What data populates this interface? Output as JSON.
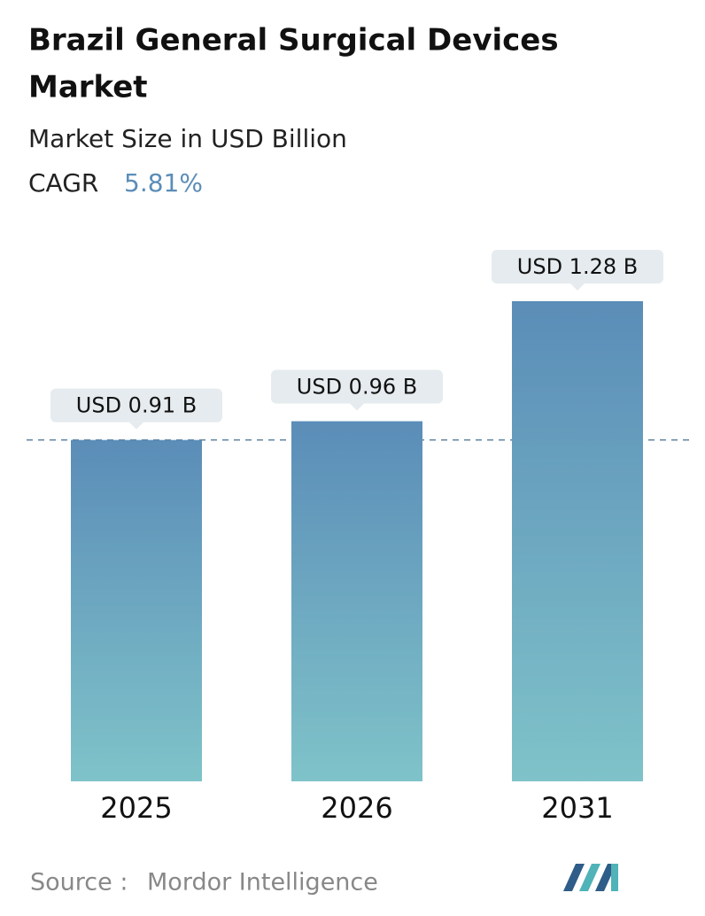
{
  "chart_data": {
    "type": "bar",
    "title": [
      "Brazil General Surgical Devices",
      "Market"
    ],
    "subtitle": "Market Size in USD Billion",
    "cagr": {
      "label": "CAGR",
      "value": "5.81%"
    },
    "categories": [
      "2025",
      "2026",
      "2031"
    ],
    "values": [
      0.91,
      0.96,
      1.28
    ],
    "value_labels": [
      "USD 0.91 B",
      "USD 0.96 B",
      "USD 1.28 B"
    ],
    "color": [
      "#5b8db8",
      "#7fc3c9"
    ],
    "source": {
      "label": "Source :",
      "name": "Mordor Intelligence"
    }
  }
}
